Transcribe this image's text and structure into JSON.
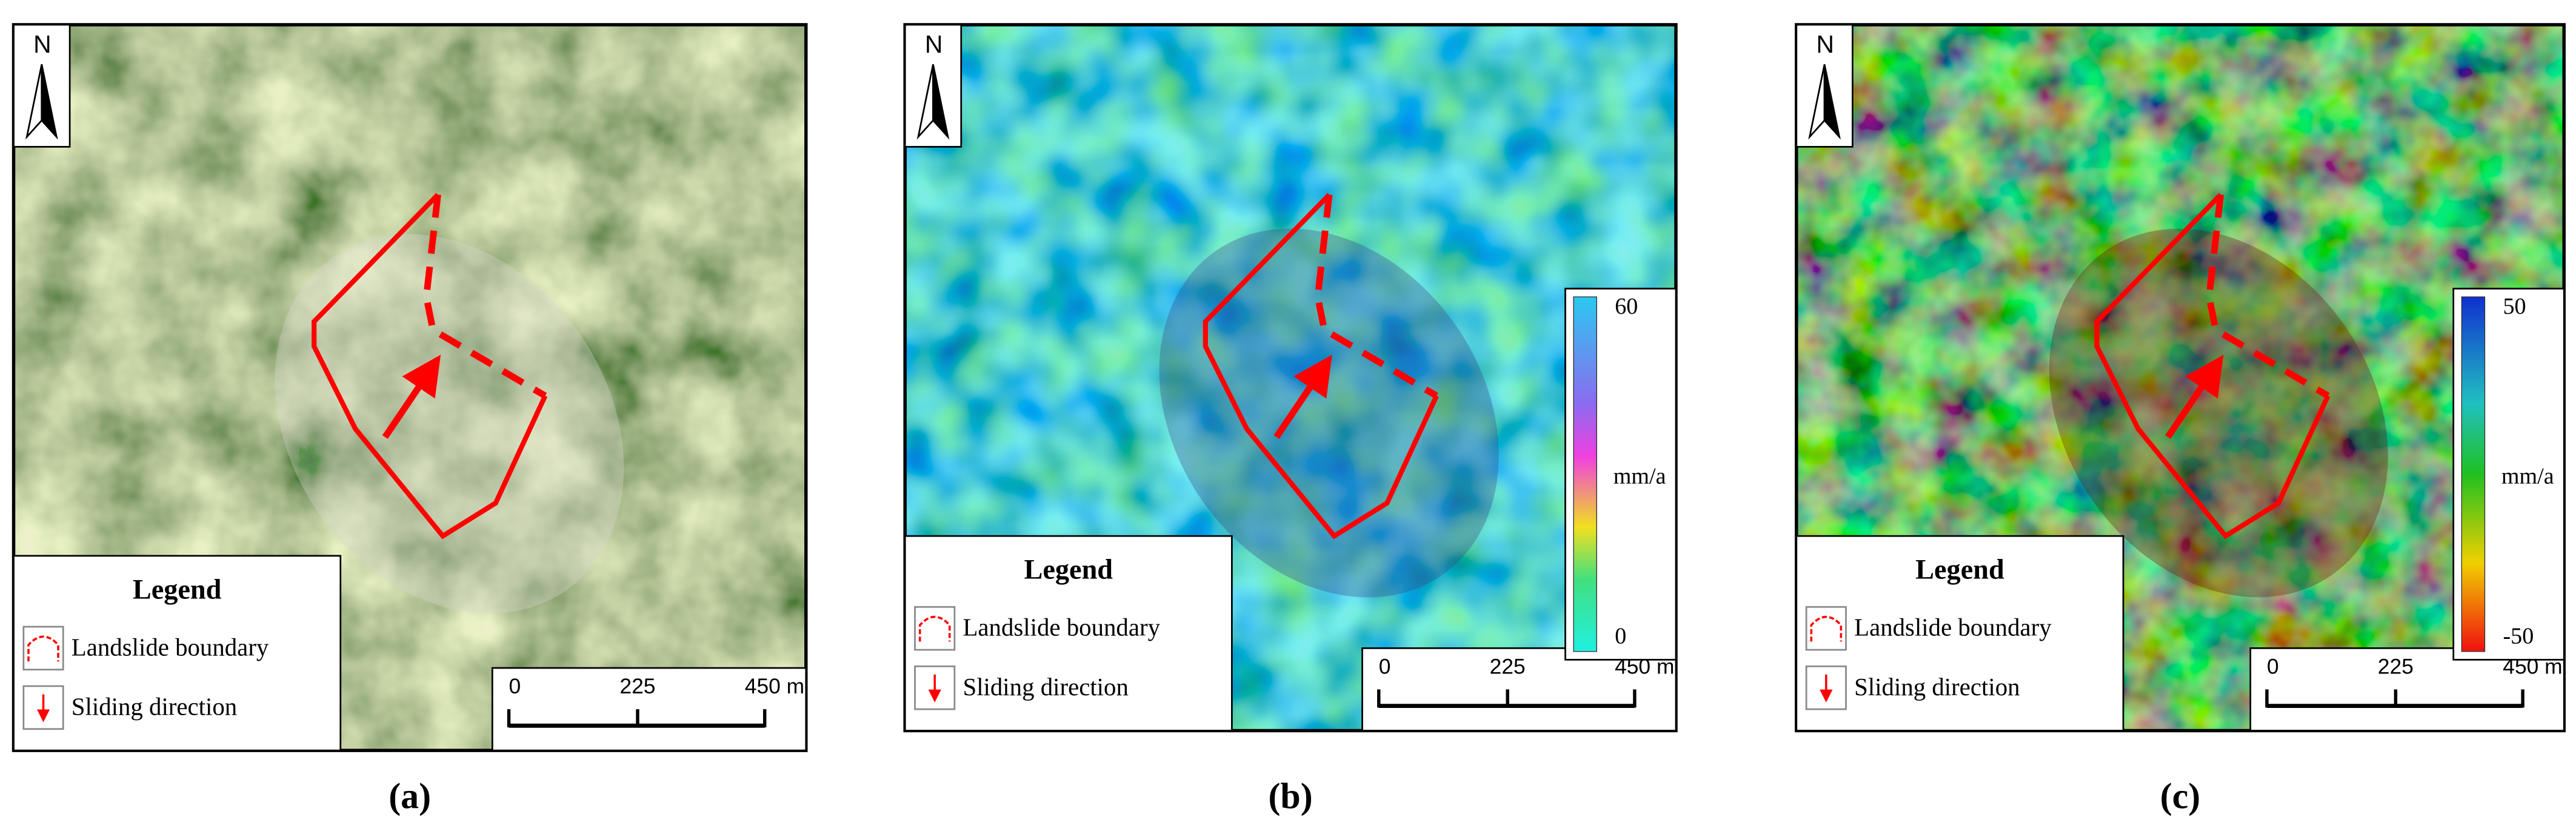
{
  "panels": [
    {
      "label": "(a)",
      "north": "N",
      "legend": {
        "title": "Legend",
        "items": [
          "Landslide boundary",
          "Sliding direction"
        ]
      },
      "scale_bar": [
        "0",
        "225",
        "450 m"
      ]
    },
    {
      "label": "(b)",
      "north": "N",
      "legend": {
        "title": "Legend",
        "items": [
          "Landslide boundary",
          "Sliding direction"
        ]
      },
      "scale_bar": [
        "0",
        "225",
        "450 m"
      ],
      "colorbar": {
        "max": "60",
        "unit": "mm/a",
        "min": "0"
      }
    },
    {
      "label": "(c)",
      "north": "N",
      "legend": {
        "title": "Legend",
        "items": [
          "Landslide boundary",
          "Sliding direction"
        ]
      },
      "scale_bar": [
        "0",
        "225",
        "450 m"
      ],
      "colorbar": {
        "max": "50",
        "unit": "mm/a",
        "min": "-50"
      }
    }
  ]
}
